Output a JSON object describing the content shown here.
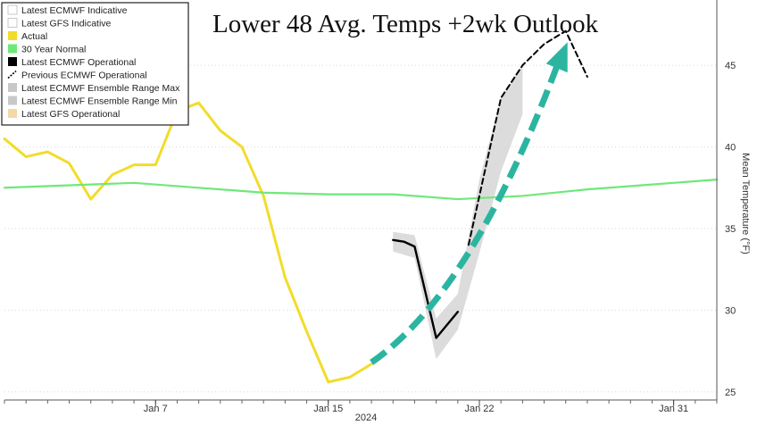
{
  "chart_data": {
    "type": "line",
    "title": "Lower 48 Avg. Temps +2wk Outlook",
    "ylabel": "Mean Temperature (°F)",
    "xlabel": "2024",
    "ylim": [
      24.5,
      49
    ],
    "xlim": [
      "2023-12-31",
      "2024-02-02"
    ],
    "x_ticks": [
      {
        "date": "2024-01-07",
        "label": "Jan 7"
      },
      {
        "date": "2024-01-15",
        "label": "Jan 15"
      },
      {
        "date": "2024-01-22",
        "label": "Jan 22"
      },
      {
        "date": "2024-01-31",
        "label": "Jan 31"
      }
    ],
    "y_ticks": [
      25,
      30,
      35,
      40,
      45
    ],
    "grid": "horizontal dotted",
    "legend_position": "top-left",
    "legend": [
      {
        "name": "Latest ECMWF Indicative",
        "color": "#ffffff"
      },
      {
        "name": "Latest GFS Indicative",
        "color": "#ffffff"
      },
      {
        "name": "Actual",
        "color": "#f2dc2a"
      },
      {
        "name": "30 Year Normal",
        "color": "#6fe87a"
      },
      {
        "name": "Latest ECMWF Operational",
        "color": "#000000"
      },
      {
        "name": "Previous ECMWF Operational",
        "color": "#000000"
      },
      {
        "name": "Latest ECMWF Ensemble Range Max",
        "color": "#c8c8c8"
      },
      {
        "name": "Latest ECMWF Ensemble Range Min",
        "color": "#c8c8c8"
      },
      {
        "name": "Latest GFS Operational",
        "color": "#f5d7a8"
      }
    ],
    "series": [
      {
        "name": "Actual",
        "color": "#f2dc2a",
        "points": [
          [
            "2023-12-31",
            40.5
          ],
          [
            "2024-01-01",
            39.4
          ],
          [
            "2024-01-02",
            39.7
          ],
          [
            "2024-01-03",
            39.0
          ],
          [
            "2024-01-04",
            36.8
          ],
          [
            "2024-01-05",
            38.3
          ],
          [
            "2024-01-06",
            38.9
          ],
          [
            "2024-01-07",
            38.9
          ],
          [
            "2024-01-08",
            42.2
          ],
          [
            "2024-01-09",
            42.7
          ],
          [
            "2024-01-10",
            41.0
          ],
          [
            "2024-01-11",
            40.0
          ],
          [
            "2024-01-12",
            37.0
          ],
          [
            "2024-01-13",
            32.0
          ],
          [
            "2024-01-14",
            28.7
          ],
          [
            "2024-01-15",
            25.6
          ],
          [
            "2024-01-16",
            25.9
          ],
          [
            "2024-01-17",
            26.7
          ]
        ]
      },
      {
        "name": "30 Year Normal",
        "color": "#6fe87a",
        "points": [
          [
            "2023-12-31",
            37.5
          ],
          [
            "2024-01-04",
            37.7
          ],
          [
            "2024-01-06",
            37.8
          ],
          [
            "2024-01-09",
            37.5
          ],
          [
            "2024-01-12",
            37.2
          ],
          [
            "2024-01-15",
            37.1
          ],
          [
            "2024-01-18",
            37.1
          ],
          [
            "2024-01-21",
            36.8
          ],
          [
            "2024-01-24",
            37.0
          ],
          [
            "2024-01-27",
            37.4
          ],
          [
            "2024-01-30",
            37.7
          ],
          [
            "2024-02-02",
            38.0
          ]
        ]
      },
      {
        "name": "Latest ECMWF Operational",
        "color": "#000000",
        "points": [
          [
            "2024-01-18",
            34.3
          ],
          [
            "2024-01-18.5",
            34.2
          ],
          [
            "2024-01-19",
            33.9
          ],
          [
            "2024-01-20",
            28.3
          ],
          [
            "2024-01-21",
            29.9
          ]
        ]
      },
      {
        "name": "Previous ECMWF Operational",
        "color": "#000000",
        "dashed": true,
        "points": [
          [
            "2024-01-21.5",
            34.0
          ],
          [
            "2024-01-22",
            37.0
          ],
          [
            "2024-01-22.5",
            40.0
          ],
          [
            "2024-01-23",
            43.0
          ],
          [
            "2024-01-24",
            45.0
          ],
          [
            "2024-01-25",
            46.3
          ],
          [
            "2024-01-26",
            47.1
          ],
          [
            "2024-01-27",
            44.3
          ]
        ]
      }
    ],
    "range_band": {
      "name": "Latest ECMWF Ensemble Range",
      "color": "#d0d0d0",
      "points": [
        [
          "2024-01-18",
          33.6,
          34.8
        ],
        [
          "2024-01-19",
          33.2,
          34.6
        ],
        [
          "2024-01-20",
          27.0,
          29.5
        ],
        [
          "2024-01-21",
          28.8,
          31.0
        ],
        [
          "2024-01-22",
          33.5,
          38.0
        ],
        [
          "2024-01-23",
          38.5,
          43.0
        ],
        [
          "2024-01-24",
          42.0,
          45.0
        ]
      ]
    },
    "annotation_arrow": {
      "color": "#2bb5a0",
      "from": [
        "2024-01-17",
        26.8
      ],
      "to": [
        "2024-01-26",
        46.2
      ]
    }
  }
}
